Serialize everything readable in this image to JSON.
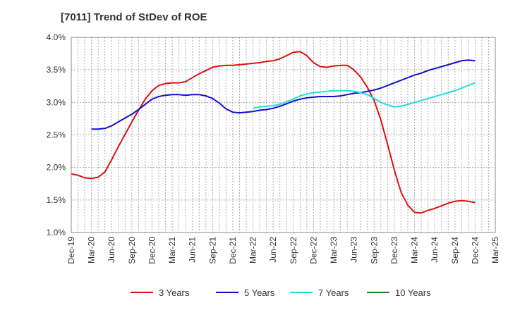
{
  "chart_data": {
    "type": "line",
    "title": "[7011]  Trend of StDev of ROE",
    "xlabel": "",
    "ylabel": "",
    "x_range": [
      "2019-12",
      "2025-03"
    ],
    "ylim": [
      0.01,
      0.04
    ],
    "y_ticks": [
      0.01,
      0.015,
      0.02,
      0.025,
      0.03,
      0.035,
      0.04
    ],
    "y_tick_labels": [
      "1.0%",
      "1.5%",
      "2.0%",
      "2.5%",
      "3.0%",
      "3.5%",
      "4.0%"
    ],
    "x_tick_labels": [
      "Dec-19",
      "Mar-20",
      "Jun-20",
      "Sep-20",
      "Dec-20",
      "Mar-21",
      "Jun-21",
      "Sep-21",
      "Dec-21",
      "Mar-22",
      "Jun-22",
      "Sep-22",
      "Dec-22",
      "Mar-23",
      "Jun-23",
      "Sep-23",
      "Dec-23",
      "Mar-24",
      "Jun-24",
      "Sep-24",
      "Dec-24",
      "Mar-25"
    ],
    "grid": true,
    "legend_position": "bottom",
    "series": [
      {
        "name": "3 Years",
        "color": "#dd1111",
        "x": [
          "2019-12",
          "2020-01",
          "2020-02",
          "2020-03",
          "2020-04",
          "2020-05",
          "2020-06",
          "2020-07",
          "2020-08",
          "2020-09",
          "2020-10",
          "2020-11",
          "2020-12",
          "2021-01",
          "2021-02",
          "2021-03",
          "2021-04",
          "2021-05",
          "2021-06",
          "2021-07",
          "2021-08",
          "2021-09",
          "2021-10",
          "2021-11",
          "2021-12",
          "2022-01",
          "2022-02",
          "2022-03",
          "2022-04",
          "2022-05",
          "2022-06",
          "2022-07",
          "2022-08",
          "2022-09",
          "2022-10",
          "2022-11",
          "2022-12",
          "2023-01",
          "2023-02",
          "2023-03",
          "2023-04",
          "2023-05",
          "2023-06",
          "2023-07",
          "2023-08",
          "2023-09",
          "2023-10",
          "2023-11",
          "2023-12",
          "2024-01",
          "2024-02",
          "2024-03",
          "2024-04",
          "2024-05",
          "2024-06",
          "2024-07",
          "2024-08",
          "2024-09",
          "2024-10",
          "2024-11",
          "2024-12"
        ],
        "values": [
          0.019,
          0.0188,
          0.0184,
          0.0183,
          0.0185,
          0.0193,
          0.0212,
          0.0232,
          0.0251,
          0.027,
          0.0288,
          0.0305,
          0.0318,
          0.0326,
          0.0329,
          0.033,
          0.033,
          0.0332,
          0.0338,
          0.0344,
          0.0349,
          0.0354,
          0.0356,
          0.0357,
          0.0357,
          0.0358,
          0.0359,
          0.036,
          0.0361,
          0.0363,
          0.0364,
          0.0367,
          0.0372,
          0.0377,
          0.0378,
          0.0372,
          0.0361,
          0.0355,
          0.0354,
          0.0356,
          0.0357,
          0.0357,
          0.035,
          0.0339,
          0.0323,
          0.0303,
          0.0273,
          0.0235,
          0.0196,
          0.0162,
          0.0142,
          0.0131,
          0.013,
          0.0134,
          0.0137,
          0.0141,
          0.0145,
          0.0148,
          0.0149,
          0.0148,
          0.0146
        ]
      },
      {
        "name": "5 Years",
        "color": "#1111cc",
        "x": [
          "2020-03",
          "2020-04",
          "2020-05",
          "2020-06",
          "2020-07",
          "2020-08",
          "2020-09",
          "2020-10",
          "2020-11",
          "2020-12",
          "2021-01",
          "2021-02",
          "2021-03",
          "2021-04",
          "2021-05",
          "2021-06",
          "2021-07",
          "2021-08",
          "2021-09",
          "2021-10",
          "2021-11",
          "2021-12",
          "2022-01",
          "2022-02",
          "2022-03",
          "2022-04",
          "2022-05",
          "2022-06",
          "2022-07",
          "2022-08",
          "2022-09",
          "2022-10",
          "2022-11",
          "2022-12",
          "2023-01",
          "2023-02",
          "2023-03",
          "2023-04",
          "2023-05",
          "2023-06",
          "2023-07",
          "2023-08",
          "2023-09",
          "2023-10",
          "2023-11",
          "2023-12",
          "2024-01",
          "2024-02",
          "2024-03",
          "2024-04",
          "2024-05",
          "2024-06",
          "2024-07",
          "2024-08",
          "2024-09",
          "2024-10",
          "2024-11",
          "2024-12"
        ],
        "values": [
          0.0259,
          0.0259,
          0.026,
          0.0264,
          0.027,
          0.0276,
          0.0282,
          0.0289,
          0.0297,
          0.0305,
          0.0309,
          0.0311,
          0.0312,
          0.0312,
          0.0311,
          0.0312,
          0.0312,
          0.031,
          0.0306,
          0.0299,
          0.029,
          0.0285,
          0.0284,
          0.0285,
          0.0286,
          0.0288,
          0.0289,
          0.0291,
          0.0294,
          0.0298,
          0.0302,
          0.0305,
          0.0307,
          0.0308,
          0.0309,
          0.0309,
          0.0309,
          0.031,
          0.0312,
          0.0314,
          0.0315,
          0.0317,
          0.0319,
          0.0322,
          0.0326,
          0.033,
          0.0334,
          0.0338,
          0.0342,
          0.0345,
          0.0349,
          0.0352,
          0.0355,
          0.0358,
          0.0361,
          0.0364,
          0.0365,
          0.0364
        ]
      },
      {
        "name": "7 Years",
        "color": "#22dddd",
        "x": [
          "2022-03",
          "2022-04",
          "2022-05",
          "2022-06",
          "2022-07",
          "2022-08",
          "2022-09",
          "2022-10",
          "2022-11",
          "2022-12",
          "2023-01",
          "2023-02",
          "2023-03",
          "2023-04",
          "2023-05",
          "2023-06",
          "2023-07",
          "2023-08",
          "2023-09",
          "2023-10",
          "2023-11",
          "2023-12",
          "2024-01",
          "2024-02",
          "2024-03",
          "2024-04",
          "2024-05",
          "2024-06",
          "2024-07",
          "2024-08",
          "2024-09",
          "2024-10",
          "2024-11",
          "2024-12"
        ],
        "values": [
          0.0291,
          0.0293,
          0.0294,
          0.0295,
          0.0297,
          0.0301,
          0.0305,
          0.031,
          0.0313,
          0.0315,
          0.0316,
          0.0317,
          0.0318,
          0.0318,
          0.0318,
          0.0317,
          0.0315,
          0.0312,
          0.0306,
          0.03,
          0.0296,
          0.0293,
          0.0294,
          0.0297,
          0.03,
          0.0303,
          0.0306,
          0.0309,
          0.0312,
          0.0315,
          0.0318,
          0.0322,
          0.0326,
          0.033
        ]
      },
      {
        "name": "10 Years",
        "color": "#228822",
        "x": [],
        "values": []
      }
    ]
  }
}
